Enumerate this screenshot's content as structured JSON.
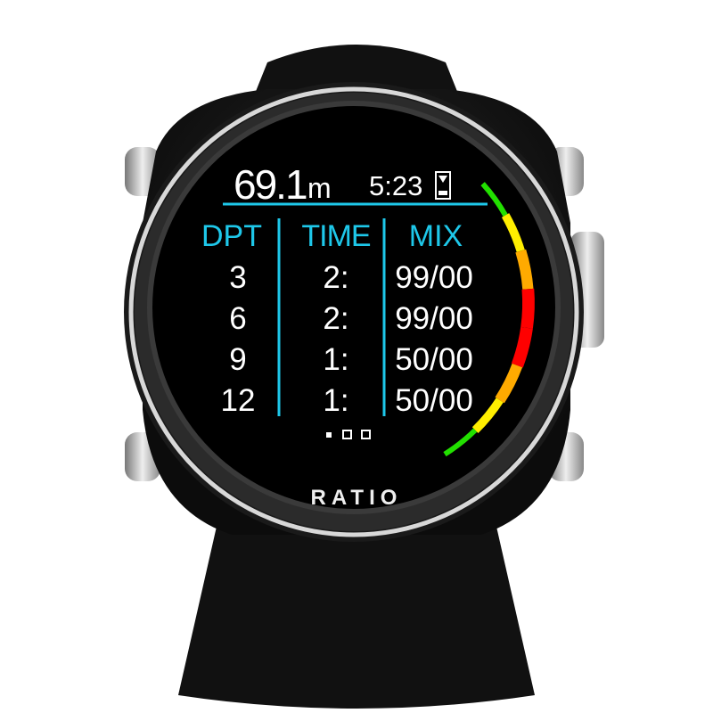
{
  "brand": "RATIO",
  "header": {
    "depth_value": "69.1",
    "depth_unit": "m",
    "time": "5:23",
    "time_icon": "hourglass-icon"
  },
  "table": {
    "columns": [
      "DPT",
      "TIME",
      "MIX"
    ],
    "rows": [
      {
        "dpt": "3",
        "time": "2:",
        "mix": "99/00"
      },
      {
        "dpt": "6",
        "time": "2:",
        "mix": "99/00"
      },
      {
        "dpt": "9",
        "time": "1:",
        "mix": "50/00"
      },
      {
        "dpt": "12",
        "time": "1:",
        "mix": "50/00"
      }
    ]
  },
  "pager": {
    "pages": 3,
    "current": 1
  },
  "colors": {
    "accent": "#1ec8ea",
    "gauge": [
      "#22e000",
      "#ffee00",
      "#ffaa00",
      "#ff0000",
      "#ff0000",
      "#ffaa00",
      "#ffee00",
      "#22e000"
    ]
  }
}
